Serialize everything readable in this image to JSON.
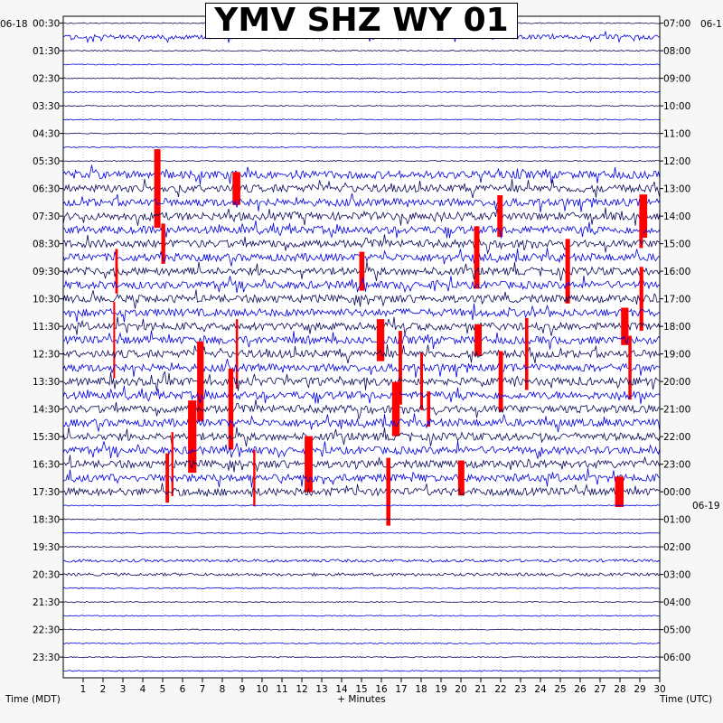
{
  "title": "YMV SHZ WY 01",
  "date_labels": {
    "left_top": "06-18",
    "right_top": "06-1",
    "utc_mid": "06-19"
  },
  "footer": {
    "left": "Time (MDT)",
    "center": "+ Minutes",
    "right": "Time (UTC)"
  },
  "colors": {
    "trace_dark": "#0a0a5a",
    "trace_blue": "#0000dd",
    "clipped": "#ff0000",
    "background": "#ffffff"
  },
  "chart_data": {
    "type": "helicorder",
    "title": "YMV SHZ WY 01",
    "xlabel": "+ Minutes",
    "ylabel_left": "Time (MDT)",
    "ylabel_right": "Time (UTC)",
    "xlim": [
      0,
      30
    ],
    "x_ticks": [
      "1",
      "2",
      "3",
      "4",
      "5",
      "6",
      "7",
      "8",
      "9",
      "10",
      "11",
      "12",
      "13",
      "14",
      "15",
      "16",
      "17",
      "18",
      "19",
      "20",
      "21",
      "22",
      "23",
      "24",
      "25",
      "26",
      "27",
      "28",
      "29",
      "30"
    ],
    "lines_per_hour": 2,
    "total_lines": 48,
    "left_labels": [
      "00:30",
      "01:30",
      "02:30",
      "03:30",
      "04:30",
      "05:30",
      "06:30",
      "07:30",
      "08:30",
      "09:30",
      "10:30",
      "11:30",
      "12:30",
      "13:30",
      "14:30",
      "15:30",
      "16:30",
      "17:30",
      "18:30",
      "19:30",
      "20:30",
      "21:30",
      "22:30",
      "23:30"
    ],
    "right_labels": [
      "07:00",
      "08:00",
      "09:00",
      "10:00",
      "11:00",
      "12:00",
      "13:00",
      "14:00",
      "15:00",
      "16:00",
      "17:00",
      "18:00",
      "19:00",
      "20:00",
      "21:00",
      "22:00",
      "23:00",
      "00:00",
      "01:00",
      "02:00",
      "03:00",
      "04:00",
      "05:00",
      "06:00"
    ],
    "activity_periods_mdt": [
      {
        "from": "00:30",
        "to": "01:00",
        "level": "moderate"
      },
      {
        "from": "05:30",
        "to": "17:30",
        "level": "high"
      },
      {
        "from": "19:30",
        "to": "20:30",
        "level": "low"
      }
    ],
    "grid": true
  }
}
